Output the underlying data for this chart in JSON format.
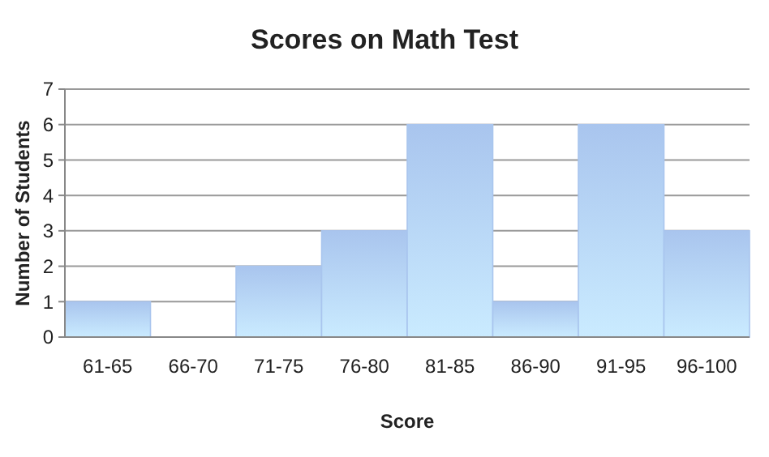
{
  "chart_data": {
    "type": "bar",
    "title": "Scores on Math Test",
    "xlabel": "Score",
    "ylabel": "Number of Students",
    "categories": [
      "61-65",
      "66-70",
      "71-75",
      "76-80",
      "81-85",
      "86-90",
      "91-95",
      "96-100"
    ],
    "values": [
      1,
      0,
      2,
      3,
      6,
      1,
      6,
      3
    ],
    "color": "#a9c5ee",
    "ylim": [
      0,
      7
    ],
    "yticks": [
      0,
      1,
      2,
      3,
      4,
      5,
      6,
      7
    ],
    "grid": "y"
  }
}
